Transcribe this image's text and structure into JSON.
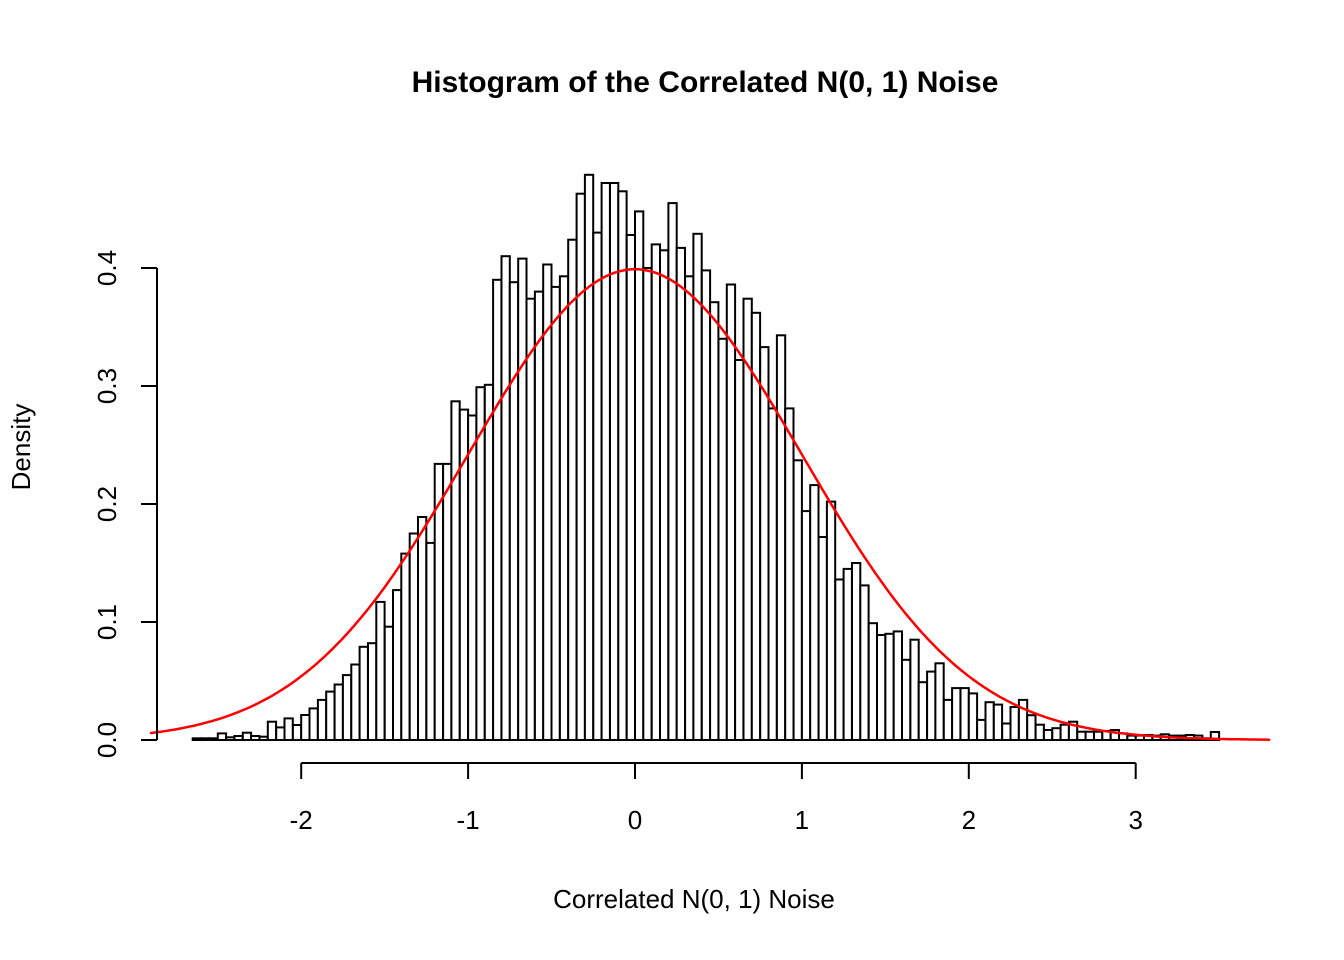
{
  "page": {
    "background": "#FFFFFF",
    "foreground": "#000000"
  },
  "chart_data": {
    "type": "bar",
    "subtype": "histogram",
    "title": "Histogram of the Correlated N(0, 1) Noise",
    "xlabel": "Correlated N(0, 1) Noise",
    "ylabel": "Density",
    "grid": false,
    "legend_position": "none",
    "bar_fill": "#FFFFFF",
    "bar_stroke": "#000000",
    "axis_color": "#000000",
    "xlim": [
      -2.9,
      3.8
    ],
    "ylim": [
      0,
      0.5
    ],
    "x_ticks": {
      "values": [
        -2,
        -1,
        0,
        1,
        2,
        3
      ],
      "labels": [
        "-2",
        "-1",
        "0",
        "1",
        "2",
        "3"
      ]
    },
    "y_ticks": {
      "values": [
        0,
        0.1,
        0.2,
        0.3,
        0.4
      ],
      "labels": [
        "0.0",
        "0.1",
        "0.2",
        "0.3",
        "0.4"
      ]
    },
    "bin_start": -2.65,
    "bin_width": 0.05,
    "densities": [
      0.0014,
      0.0014,
      0.0014,
      0.0056,
      0.0023,
      0.0034,
      0.0062,
      0.0034,
      0.0028,
      0.0155,
      0.0107,
      0.0183,
      0.0127,
      0.0212,
      0.0268,
      0.034,
      0.041,
      0.047,
      0.055,
      0.064,
      0.079,
      0.082,
      0.117,
      0.096,
      0.127,
      0.158,
      0.175,
      0.189,
      0.167,
      0.234,
      0.234,
      0.287,
      0.28,
      0.275,
      0.299,
      0.301,
      0.39,
      0.41,
      0.388,
      0.408,
      0.374,
      0.38,
      0.403,
      0.384,
      0.393,
      0.424,
      0.463,
      0.479,
      0.43,
      0.472,
      0.472,
      0.465,
      0.428,
      0.448,
      0.4,
      0.42,
      0.415,
      0.455,
      0.417,
      0.393,
      0.429,
      0.398,
      0.371,
      0.34,
      0.386,
      0.322,
      0.374,
      0.362,
      0.333,
      0.281,
      0.343,
      0.281,
      0.237,
      0.194,
      0.216,
      0.172,
      0.202,
      0.136,
      0.145,
      0.15,
      0.131,
      0.099,
      0.089,
      0.09,
      0.092,
      0.068,
      0.085,
      0.049,
      0.058,
      0.065,
      0.034,
      0.044,
      0.044,
      0.0395,
      0.017,
      0.032,
      0.03,
      0.014,
      0.028,
      0.034,
      0.021,
      0.013,
      0.0085,
      0.01,
      0.013,
      0.0155,
      0.007,
      0.007,
      0.007,
      0.0076,
      0.0085,
      0.0056,
      0.0037,
      0.0037,
      0.0042,
      0.0037,
      0.0048,
      0.0037,
      0.0037,
      0.0042,
      0.0037,
      0.0014,
      0.0068
    ],
    "overlay_curve": {
      "name": "standard-normal-density",
      "description": "dnorm(x) N(0,1) density curve",
      "color": "#FF0000",
      "x_from": -2.9,
      "x_to": 3.8,
      "peak_density": 0.3989
    }
  }
}
